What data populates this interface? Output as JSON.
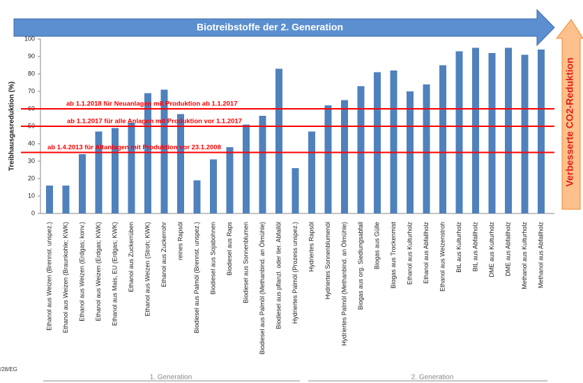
{
  "chart_data": {
    "type": "bar",
    "header": "Biotreibstoffe der 2. Generation",
    "side_label": "Verbesserte CO2-Reduktion",
    "ylabel": "Treibhausgasreduktion (%)",
    "footnote": "/28/EG",
    "groups": [
      "1. Generation",
      "2. Generation"
    ],
    "categories": [
      "Ethanol aus Weizen (Brennst. unspez.)",
      "Ethanol aus Weizen (Braunkohle; KWK)",
      "Ethanol aus Weizen (Erdgas; konv.)",
      "Ethanol aus Weizen (Erdgas; KWK)",
      "Ethanol aus Mais, EU (Erdgas; KWK)",
      "Ethanol aus Zuckerrüben",
      "Ethanol aus Weizen (Stroh; KWK)",
      "Ethanol aus Zuckerrohr",
      "reines Rapsöl",
      "Biodiesel aus Palmöl (Brennst. unspez.)",
      "Biodiesel aus Sojabohnen",
      "Biodiesel aus Raps",
      "Biodiesel aus Sonnenblumen",
      "Biodiesel aus Palmöl (Methanbind. an Ölmühle)",
      "Biodiesel aus pflanzl. oder tier. Abfallöl",
      "Hydriertes Palmöl (Prozess unspez.)",
      "Hydriertes Rapsöl",
      "Hydriertes Sonnenblumenöl",
      "Hydriertes Palmöl (Methanbind. an Ölmühle)",
      "Biogas aus org. Siedlungsabfall",
      "Biogas aus Gülle",
      "Biogas aus Trockenmist",
      "Ethanol aus Kulturholz",
      "Ethanol aus Abfallholz",
      "Ethanol aus Weizenstroh",
      "BtL aus Kulturholz",
      "BtL aus Abfallholz",
      "DME aus Kulturholz",
      "DME aus Abfallholz",
      "Methanol aus Kulturholz",
      "Methanol aus Abfallholz"
    ],
    "values": [
      16,
      16,
      34,
      47,
      49,
      52,
      69,
      71,
      57,
      19,
      31,
      38,
      51,
      56,
      83,
      26,
      47,
      62,
      65,
      73,
      81,
      82,
      70,
      74,
      85,
      93,
      95,
      92,
      95,
      91,
      94
    ],
    "color": "#4f81bd",
    "ylim": [
      0,
      100
    ],
    "yticks": [
      0,
      10,
      20,
      30,
      40,
      50,
      60,
      70,
      80,
      90,
      100
    ],
    "grid": false,
    "reference_lines": [
      {
        "value": 60,
        "label": "ab 1.1.2018  für Neuanlagen mit Produktion ab 1.1.2017"
      },
      {
        "value": 50,
        "label": "ab 1.1.2017  für alle Anlagen mit Produktion vor 1.1.2017"
      },
      {
        "value": 35,
        "label": "ab 1.4.2013  für Altanlagen mit Produktion vor 23.1.2008"
      }
    ],
    "reference_color": "#ff0000"
  }
}
